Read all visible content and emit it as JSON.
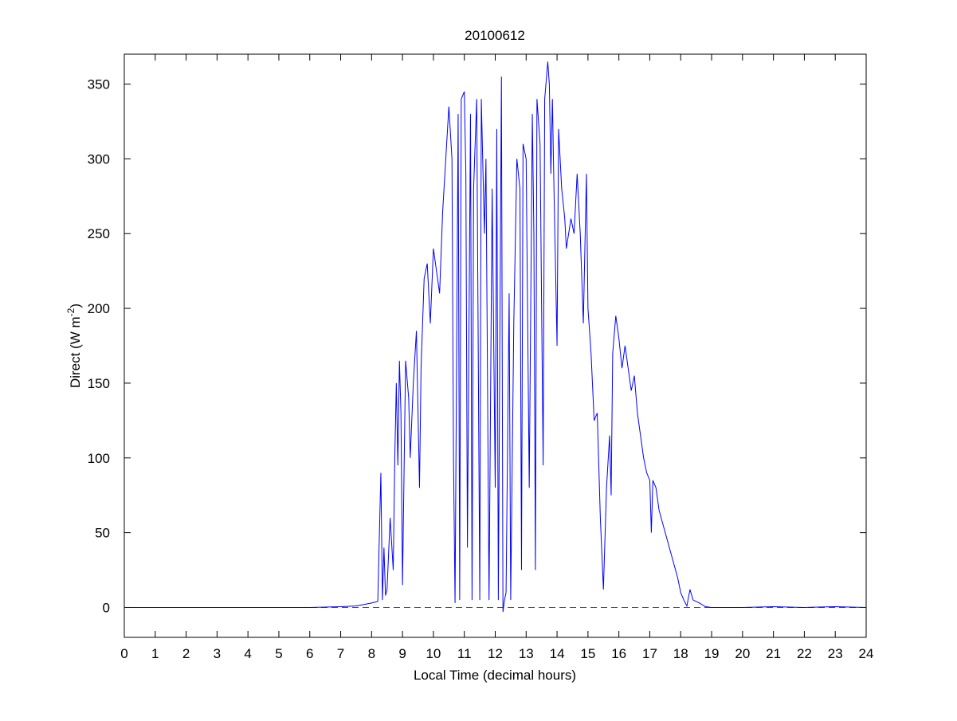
{
  "chart_data": {
    "type": "line",
    "title": "20100612",
    "xlabel": "Local Time (decimal hours)",
    "ylabel": [
      "Direct (W m",
      "-2",
      ")"
    ],
    "x": [
      0,
      1,
      2,
      3,
      4,
      5,
      6,
      7,
      7.5,
      8,
      8.2,
      8.3,
      8.35,
      8.4,
      8.45,
      8.5,
      8.6,
      8.7,
      8.75,
      8.8,
      8.85,
      8.9,
      8.95,
      9.0,
      9.1,
      9.2,
      9.25,
      9.35,
      9.45,
      9.55,
      9.6,
      9.7,
      9.8,
      9.9,
      10.0,
      10.1,
      10.2,
      10.3,
      10.4,
      10.5,
      10.6,
      10.65,
      10.7,
      10.8,
      10.85,
      10.9,
      11.0,
      11.05,
      11.1,
      11.2,
      11.25,
      11.3,
      11.4,
      11.5,
      11.55,
      11.65,
      11.7,
      11.8,
      11.9,
      12.0,
      12.05,
      12.1,
      12.2,
      12.25,
      12.3,
      12.35,
      12.45,
      12.5,
      12.6,
      12.7,
      12.8,
      12.85,
      12.9,
      13.0,
      13.1,
      13.2,
      13.25,
      13.3,
      13.35,
      13.45,
      13.55,
      13.6,
      13.7,
      13.75,
      13.8,
      13.85,
      13.9,
      14.0,
      14.05,
      14.15,
      14.25,
      14.3,
      14.45,
      14.55,
      14.65,
      14.75,
      14.85,
      14.95,
      15.0,
      15.1,
      15.2,
      15.3,
      15.4,
      15.5,
      15.6,
      15.7,
      15.75,
      15.8,
      15.9,
      16.0,
      16.1,
      16.2,
      16.3,
      16.4,
      16.5,
      16.6,
      16.7,
      16.8,
      16.9,
      17.0,
      17.05,
      17.1,
      17.2,
      17.3,
      17.5,
      17.7,
      17.9,
      18.0,
      18.1,
      18.2,
      18.3,
      18.4,
      18.6,
      18.8,
      19.0,
      20,
      21,
      22,
      23,
      24
    ],
    "series": [
      {
        "color": "#0000ff",
        "values": [
          0,
          0,
          0,
          0,
          0,
          0,
          0,
          0.5,
          1,
          3,
          4,
          90,
          5,
          40,
          8,
          12,
          60,
          25,
          100,
          150,
          95,
          165,
          130,
          15,
          165,
          140,
          100,
          150,
          185,
          80,
          160,
          220,
          230,
          190,
          240,
          225,
          210,
          265,
          300,
          335,
          300,
          100,
          3,
          330,
          5,
          340,
          345,
          290,
          40,
          330,
          5,
          280,
          340,
          5,
          340,
          250,
          300,
          5,
          280,
          80,
          320,
          5,
          355,
          -3,
          5,
          10,
          210,
          5,
          190,
          300,
          280,
          25,
          310,
          300,
          80,
          330,
          250,
          25,
          340,
          310,
          95,
          340,
          365,
          350,
          290,
          340,
          280,
          175,
          320,
          280,
          260,
          240,
          260,
          250,
          290,
          250,
          190,
          290,
          200,
          170,
          125,
          130,
          60,
          12,
          80,
          115,
          75,
          170,
          195,
          180,
          160,
          175,
          160,
          145,
          155,
          130,
          115,
          100,
          90,
          85,
          50,
          85,
          80,
          65,
          50,
          35,
          20,
          10,
          5,
          1,
          12,
          5,
          3,
          0.5,
          0,
          0,
          0.5,
          0,
          0.5,
          0
        ]
      }
    ],
    "reference_line": {
      "value": 0,
      "color": "#ff0000"
    },
    "xlim": [
      0,
      24
    ],
    "xticks": [
      0,
      1,
      2,
      3,
      4,
      5,
      6,
      7,
      8,
      9,
      10,
      11,
      12,
      13,
      14,
      15,
      16,
      17,
      18,
      19,
      20,
      21,
      22,
      23,
      24
    ],
    "ylim": [
      -20,
      370
    ],
    "yticks": [
      0,
      50,
      100,
      150,
      200,
      250,
      300,
      350
    ]
  }
}
